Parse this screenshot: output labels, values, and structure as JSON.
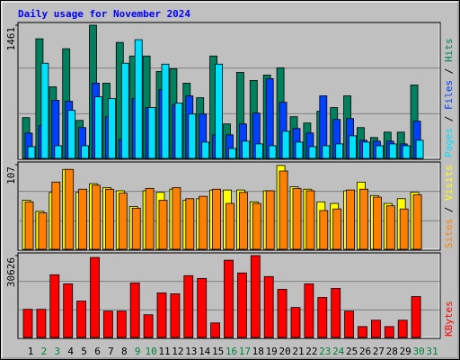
{
  "chart_data": [
    {
      "type": "bar",
      "title": "Daily usage for November 2024",
      "ylim": [
        0,
        1461
      ],
      "yticks": [
        1461
      ],
      "legend_separator": " / ",
      "series": [
        {
          "name": "Hits",
          "color": "#00805c",
          "values": [
            447,
            1312,
            785,
            1203,
            417,
            1461,
            825,
            1272,
            1123,
            1123,
            954,
            984,
            825,
            666,
            1123,
            378,
            944,
            855,
            914,
            994,
            457,
            388,
            517,
            557,
            686,
            338,
            229,
            288,
            288,
            805,
            0
          ]
        },
        {
          "name": "Files",
          "color": "#0040ff",
          "values": [
            278,
            358,
            636,
            626,
            338,
            825,
            457,
            209,
            656,
            557,
            755,
            586,
            686,
            487,
            258,
            258,
            378,
            497,
            875,
            616,
            328,
            278,
            686,
            427,
            437,
            199,
            189,
            189,
            159,
            408,
            0
          ]
        },
        {
          "name": "Pages",
          "color": "#00e0ff",
          "values": [
            129,
            1044,
            139,
            527,
            139,
            676,
            656,
            1044,
            1302,
            557,
            1034,
            606,
            487,
            179,
            1034,
            109,
            189,
            159,
            139,
            298,
            179,
            129,
            139,
            159,
            248,
            179,
            139,
            159,
            139,
            199,
            0
          ]
        }
      ]
    },
    {
      "type": "bar",
      "ylim": [
        0,
        107
      ],
      "yticks": [
        107
      ],
      "legend_separator": " / ",
      "series": [
        {
          "name": "Visits",
          "color": "#ffff00",
          "values": [
            62,
            48,
            72,
            101,
            72,
            83,
            78,
            74,
            54,
            74,
            72,
            76,
            62,
            64,
            75,
            75,
            75,
            60,
            74,
            106,
            79,
            76,
            60,
            58,
            74,
            85,
            68,
            58,
            64,
            72,
            0
          ]
        },
        {
          "name": "Sites",
          "color": "#ff8000",
          "values": [
            60,
            46,
            85,
            101,
            76,
            81,
            76,
            71,
            52,
            77,
            62,
            78,
            64,
            67,
            76,
            58,
            72,
            58,
            74,
            99,
            77,
            74,
            49,
            51,
            75,
            76,
            66,
            55,
            51,
            69,
            0
          ]
        }
      ]
    },
    {
      "type": "bar",
      "ylim": [
        0,
        30626
      ],
      "yticks": [
        30626
      ],
      "legend_separator": " / ",
      "series": [
        {
          "name": "KBytes",
          "color": "#ff0000",
          "values": [
            10540,
            10540,
            23460,
            20060,
            13600,
            29920,
            9860,
            9860,
            20400,
            8500,
            16660,
            16320,
            23120,
            22100,
            5440,
            28900,
            24140,
            30626,
            22780,
            18020,
            11220,
            20060,
            14960,
            18360,
            9860,
            4080,
            6460,
            4080,
            6460,
            15300,
            0
          ]
        }
      ],
      "categories": [
        "1",
        "2",
        "3",
        "4",
        "5",
        "6",
        "7",
        "8",
        "9",
        "10",
        "11",
        "12",
        "13",
        "14",
        "15",
        "16",
        "17",
        "18",
        "19",
        "20",
        "21",
        "22",
        "23",
        "24",
        "25",
        "26",
        "27",
        "28",
        "29",
        "30",
        "31"
      ],
      "label_colors": [
        "#000000",
        "#008040",
        "#008040",
        "#000000",
        "#000000",
        "#000000",
        "#000000",
        "#000000",
        "#008040",
        "#008040",
        "#000000",
        "#000000",
        "#000000",
        "#000000",
        "#000000",
        "#008040",
        "#008040",
        "#000000",
        "#000000",
        "#000000",
        "#000000",
        "#000000",
        "#008040",
        "#008040",
        "#000000",
        "#000000",
        "#000000",
        "#000000",
        "#000000",
        "#008040",
        "#008040"
      ]
    }
  ]
}
